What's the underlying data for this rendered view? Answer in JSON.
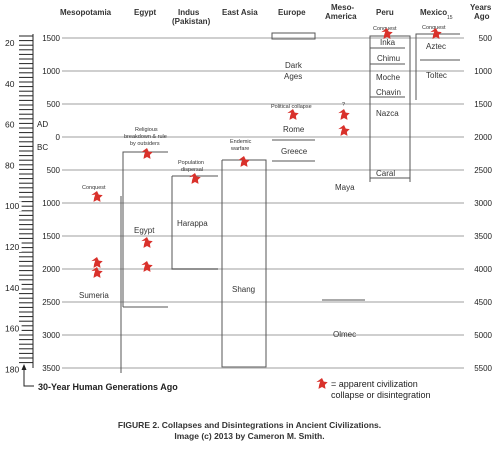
{
  "headers": {
    "mesopotamia": "Mesopotamia",
    "egypt": "Egypt",
    "indus_line1": "Indus",
    "indus_line2": "(Pakistan)",
    "east_asia": "East Asia",
    "europe": "Europe",
    "meso_line1": "Meso-",
    "meso_line2": "America",
    "peru": "Peru",
    "mexico": "Mexico",
    "mexico_sup": "15",
    "years_line1": "Years",
    "years_line2": "Ago"
  },
  "generation_ticks": [
    "20",
    "40",
    "60",
    "80",
    "100",
    "120",
    "140",
    "160",
    "180"
  ],
  "ad_bc": {
    "ad": "AD",
    "bc": "BC"
  },
  "year_ticks": [
    "1500",
    "1000",
    "500",
    "0",
    "500",
    "1000",
    "1500",
    "2000",
    "2500",
    "3000",
    "3500"
  ],
  "years_ago_ticks": [
    "500",
    "1000",
    "1500",
    "2000",
    "2500",
    "3000",
    "3500",
    "4000",
    "4500",
    "5000",
    "5500"
  ],
  "civilizations": {
    "sumeria": "Sumeria",
    "egypt": "Egypt",
    "harappa": "Harappa",
    "shang": "Shang",
    "dark_ages_line1": "Dark",
    "dark_ages_line2": "Ages",
    "rome": "Rome",
    "greece": "Greece",
    "maya": "Maya",
    "olmec": "Olmec",
    "inka": "Inka",
    "chimu": "Chimu",
    "moche": "Moche",
    "chavin": "Chavin",
    "nazca": "Nazca",
    "caral": "Caral",
    "aztec": "Aztec",
    "toltec": "Toltec"
  },
  "annotations": {
    "conquest_meso": "Conquest",
    "religious_line1": "Religious",
    "religious_line2": "breakdown & rule",
    "religious_line3": "by outsiders",
    "pop_line1": "Population",
    "pop_line2": "dispersal",
    "endemic_line1": "Endemic",
    "endemic_line2": "warfare",
    "political": "Political collapse",
    "question": "?",
    "conquest_peru": "Conquest",
    "conquest_mexico": "Conquest"
  },
  "bottom_label": "30-Year Human Generations Ago",
  "legend": {
    "line1": "= apparent civilization",
    "line2": "collapse or disintegration",
    "star_color": "#d9312b"
  },
  "caption": {
    "line1": "FIGURE 2. Collapses and Disintegrations in Ancient Civilizations.",
    "line2": "Image (c) 2013 by Cameron M. Smith."
  }
}
